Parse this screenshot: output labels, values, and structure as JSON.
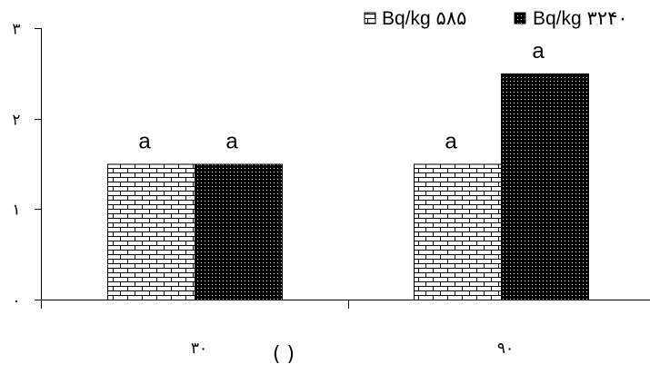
{
  "chart_data": {
    "type": "bar",
    "categories": [
      "۳۰",
      "۹۰"
    ],
    "series": [
      {
        "name": "Bq/kg ۵۸۵",
        "values": [
          1.5,
          1.5
        ],
        "labels": [
          "a",
          "a"
        ],
        "pattern": "brick"
      },
      {
        "name": "Bq/kg ۳۲۴۰",
        "values": [
          1.5,
          2.5
        ],
        "labels": [
          "a",
          "a"
        ],
        "pattern": "dots"
      }
    ],
    "yticks": [
      {
        "value": 0,
        "label": "۰"
      },
      {
        "value": 1,
        "label": "۱"
      },
      {
        "value": 2,
        "label": "۲"
      },
      {
        "value": 3,
        "label": "۳"
      }
    ],
    "ylim": [
      0,
      3
    ],
    "xlabel": "(    )",
    "legend_position": "top-right",
    "grid": false
  }
}
